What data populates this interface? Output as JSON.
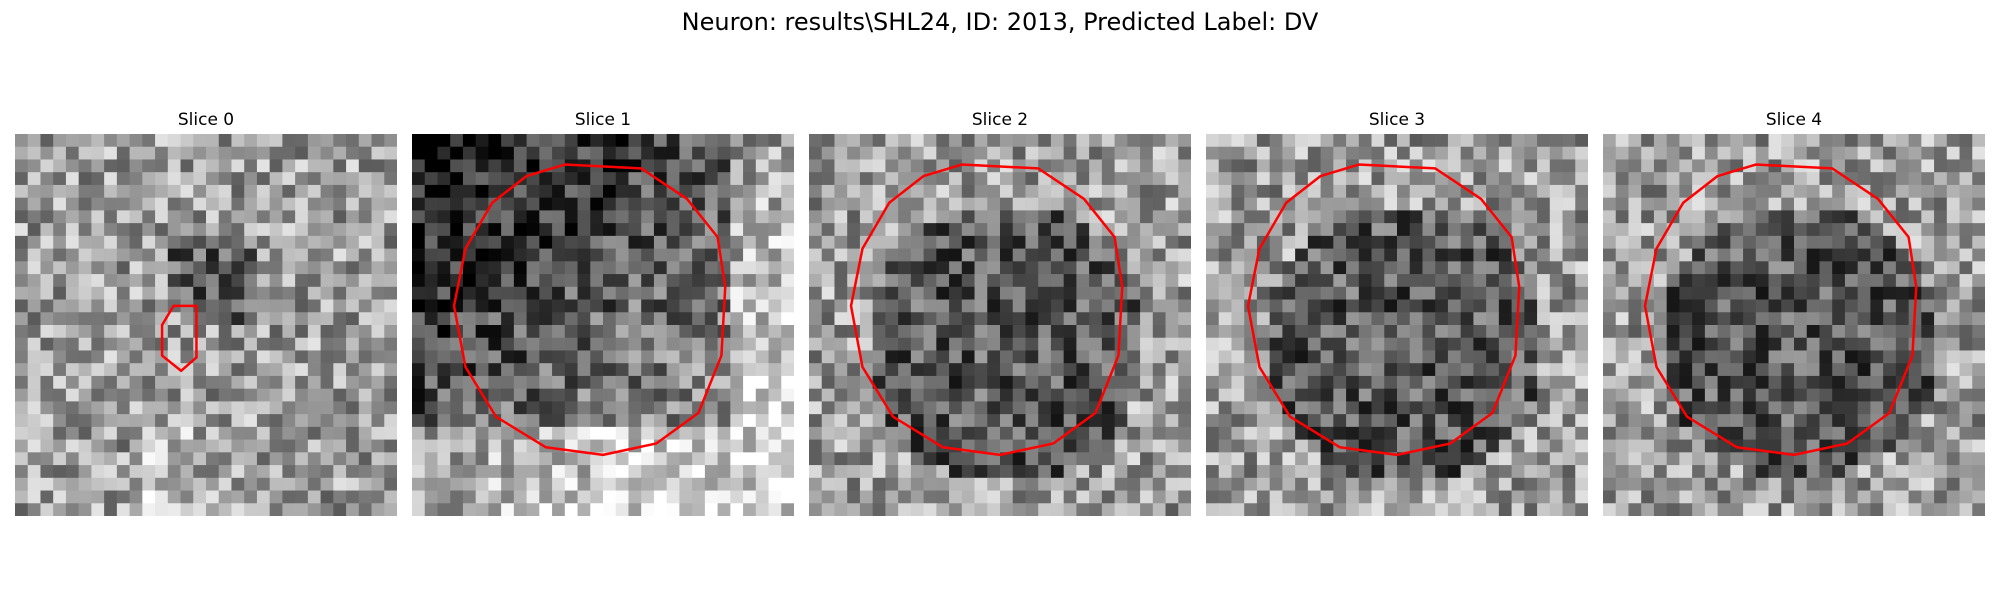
{
  "figure": {
    "title": "Neuron: results\\SHL24, ID: 2013, Predicted Label: DV"
  },
  "colors": {
    "contour": "#ff0000",
    "background": "#ffffff"
  },
  "panels": [
    {
      "title": "Slice 0",
      "pattern": "noise-with-small-dark-spot",
      "contour": "small"
    },
    {
      "title": "Slice 1",
      "pattern": "dark-upper-left-gradient",
      "contour": "large"
    },
    {
      "title": "Slice 2",
      "pattern": "noise-with-dark-disc",
      "contour": "large"
    },
    {
      "title": "Slice 3",
      "pattern": "noise-with-dark-disc",
      "contour": "large"
    },
    {
      "title": "Slice 4",
      "pattern": "noise-with-dark-disc",
      "contour": "large"
    }
  ]
}
